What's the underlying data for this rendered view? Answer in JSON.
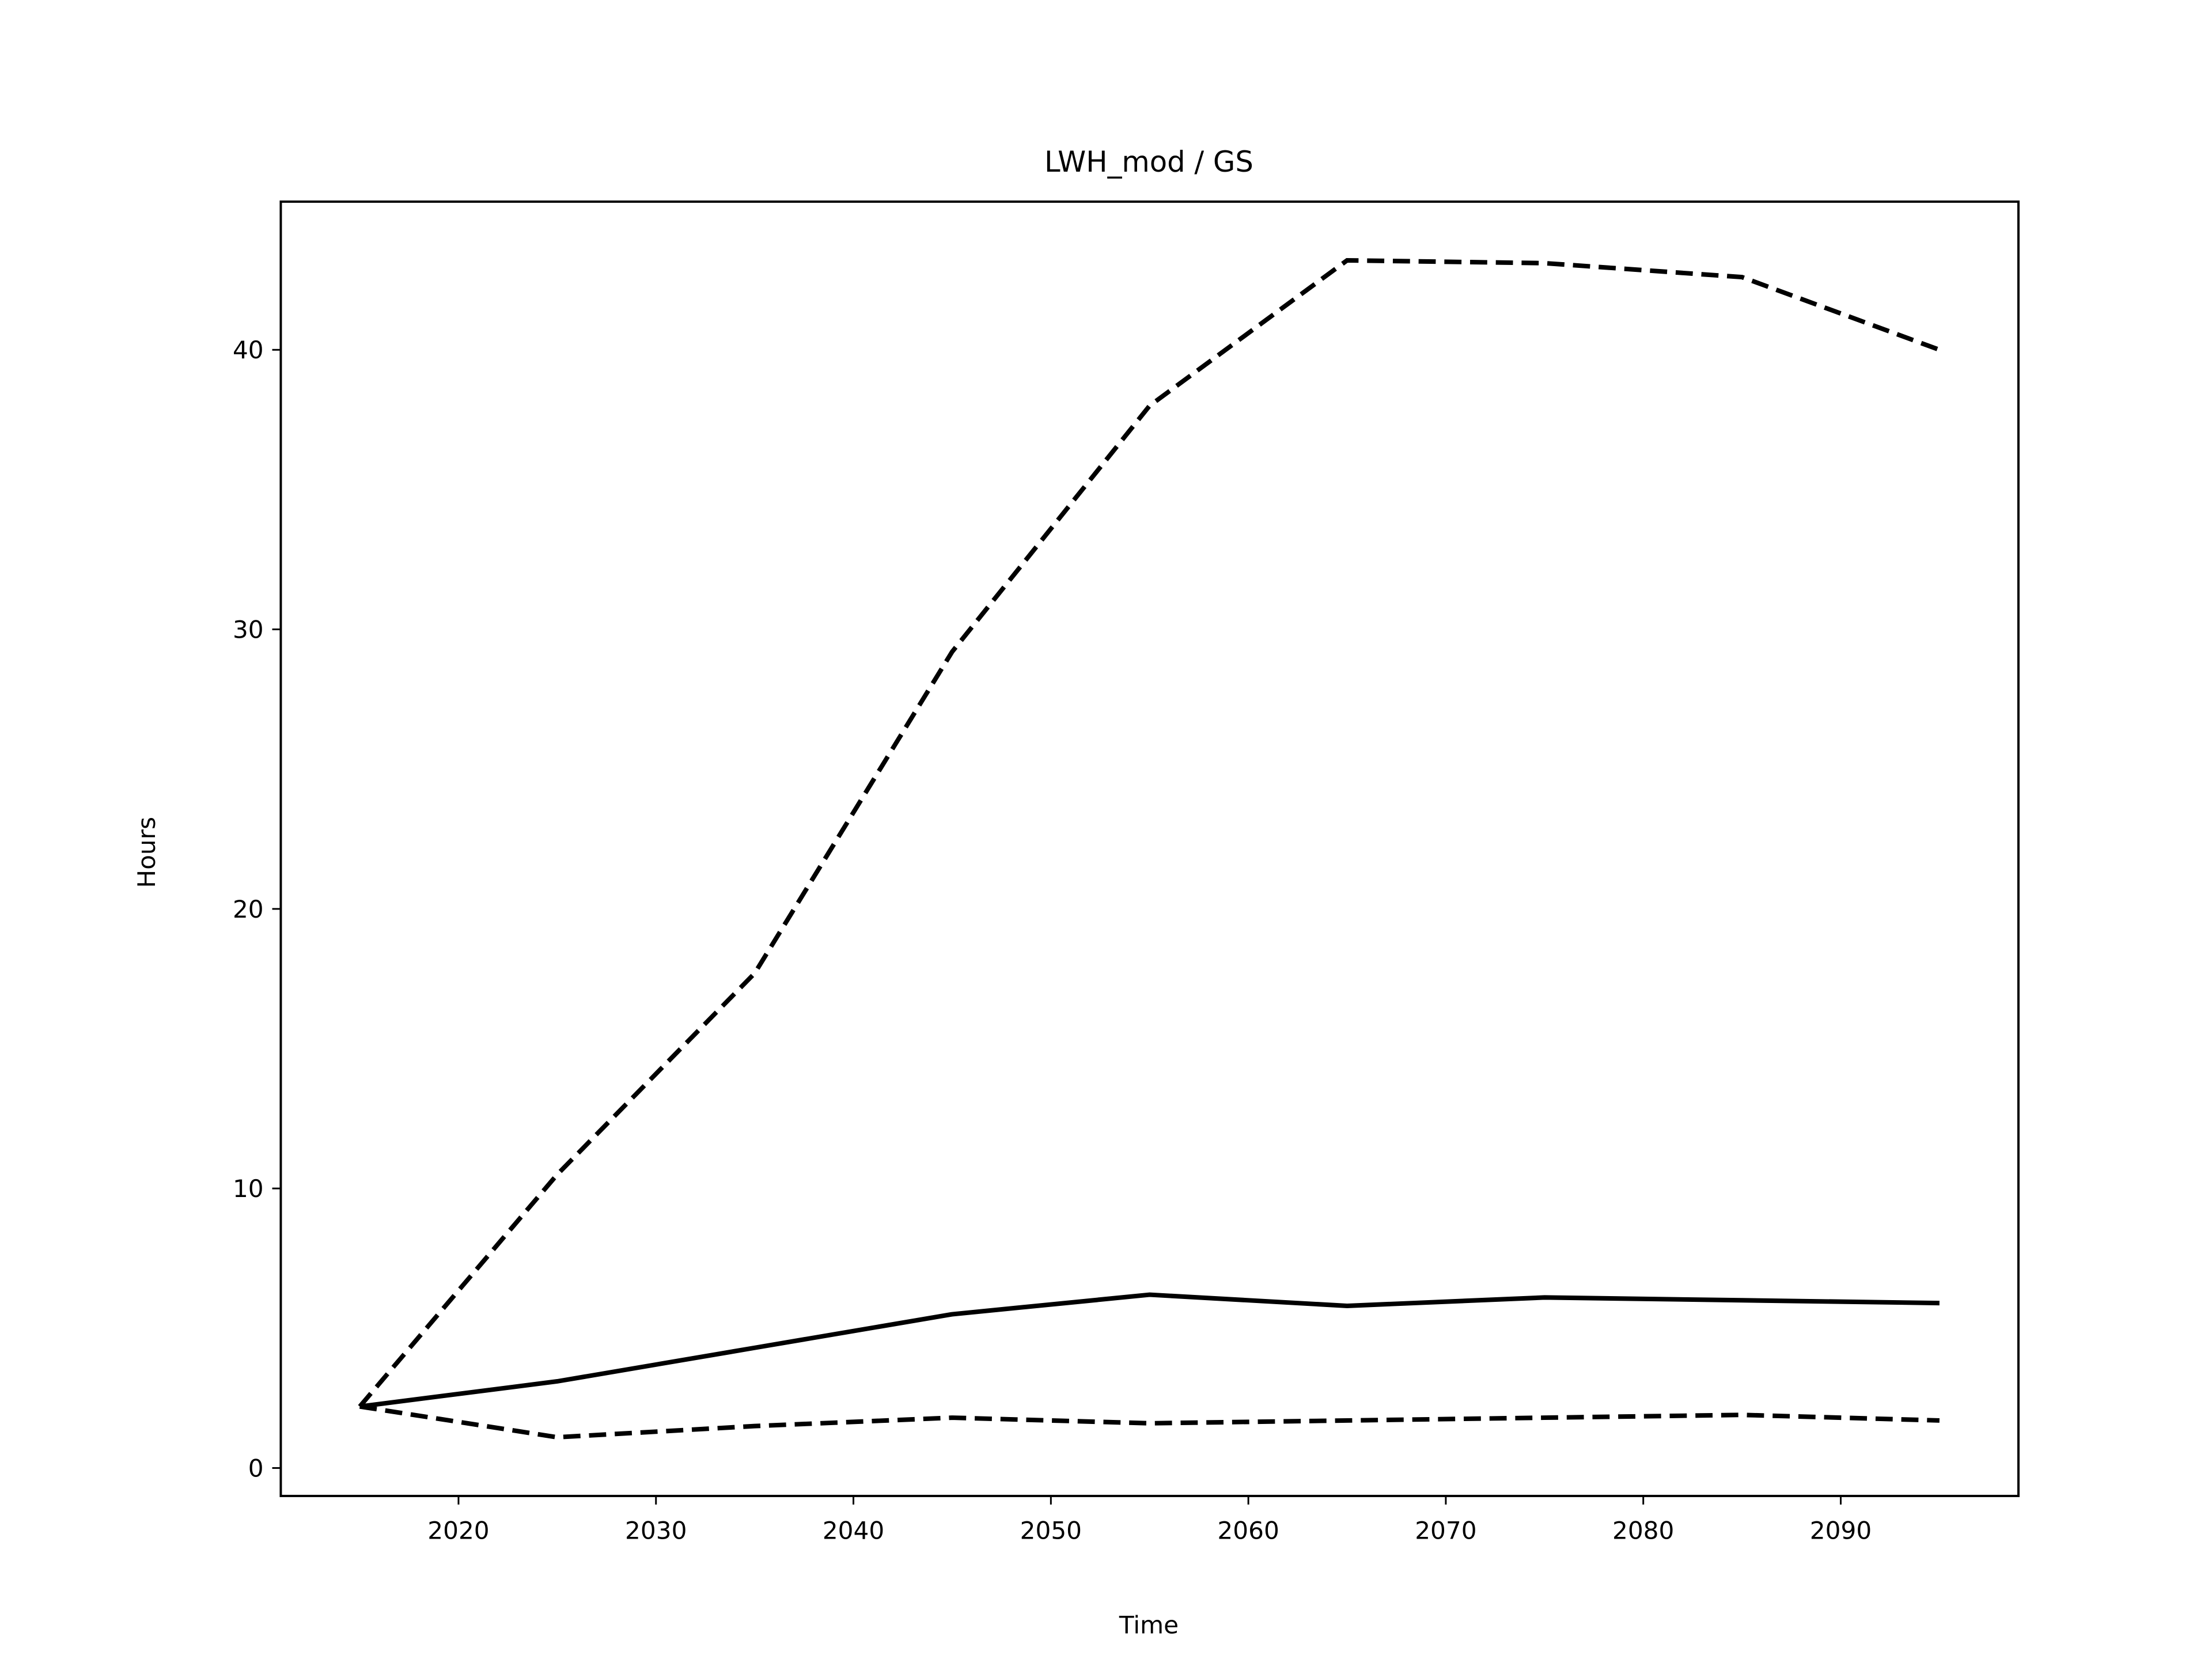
{
  "chart_data": {
    "type": "line",
    "title": "LWH_mod / GS",
    "xlabel": "Time",
    "ylabel": "Hours",
    "x": [
      2015,
      2025,
      2035,
      2045,
      2055,
      2065,
      2075,
      2085,
      2095
    ],
    "series": [
      {
        "color": "#000000",
        "dashed": true,
        "values": [
          2.2,
          10.5,
          17.7,
          29.2,
          38.0,
          43.2,
          43.1,
          42.6,
          40.0
        ]
      },
      {
        "color": "#000000",
        "dashed": false,
        "values": [
          2.2,
          3.1,
          4.3,
          5.5,
          6.2,
          5.8,
          6.1,
          6.0,
          5.9
        ]
      },
      {
        "color": "#000000",
        "dashed": true,
        "values": [
          2.2,
          1.1,
          1.5,
          1.8,
          1.6,
          1.7,
          1.8,
          1.9,
          1.7
        ]
      }
    ],
    "xlim": [
      2011,
      2099
    ],
    "xticks": [
      2020,
      2030,
      2040,
      2050,
      2060,
      2070,
      2080,
      2090
    ],
    "ylim": [
      -1.0,
      45.3
    ],
    "yticks": [
      0,
      10,
      20,
      30,
      40
    ],
    "grid": false
  }
}
